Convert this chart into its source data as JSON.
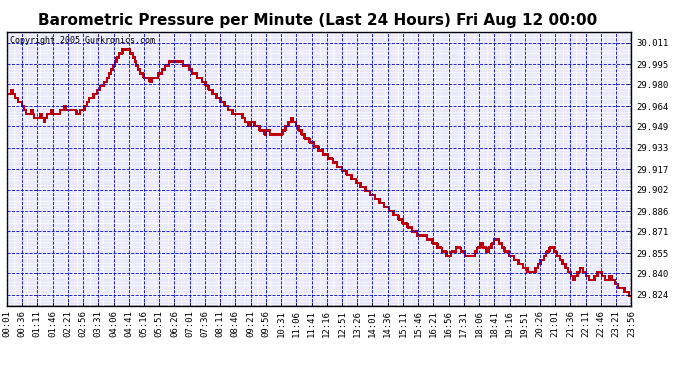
{
  "title": "Barometric Pressure per Minute (Last 24 Hours) Fri Aug 12 00:00",
  "copyright": "Copyright 2005 Gurkronics.com",
  "bg_color": "#ffffff",
  "plot_bg_color": "#ffffff",
  "grid_color": "#0000cc",
  "line_color": "#cc0000",
  "yticks": [
    29.824,
    29.84,
    29.855,
    29.871,
    29.886,
    29.902,
    29.917,
    29.933,
    29.949,
    29.964,
    29.98,
    29.995,
    30.011
  ],
  "ymin": 29.816,
  "ymax": 30.019,
  "xtick_labels": [
    "00:01",
    "00:36",
    "01:11",
    "01:46",
    "02:21",
    "02:56",
    "03:31",
    "04:06",
    "04:41",
    "05:16",
    "05:51",
    "06:26",
    "07:01",
    "07:36",
    "08:11",
    "08:46",
    "09:21",
    "09:56",
    "10:31",
    "11:06",
    "11:41",
    "12:16",
    "12:51",
    "13:26",
    "14:01",
    "14:36",
    "15:11",
    "15:46",
    "16:21",
    "16:56",
    "17:31",
    "18:06",
    "18:41",
    "19:16",
    "19:51",
    "20:26",
    "21:01",
    "21:36",
    "22:11",
    "22:46",
    "23:21",
    "23:56"
  ],
  "title_fontsize": 11,
  "tick_fontsize": 6.5,
  "copyright_fontsize": 6
}
